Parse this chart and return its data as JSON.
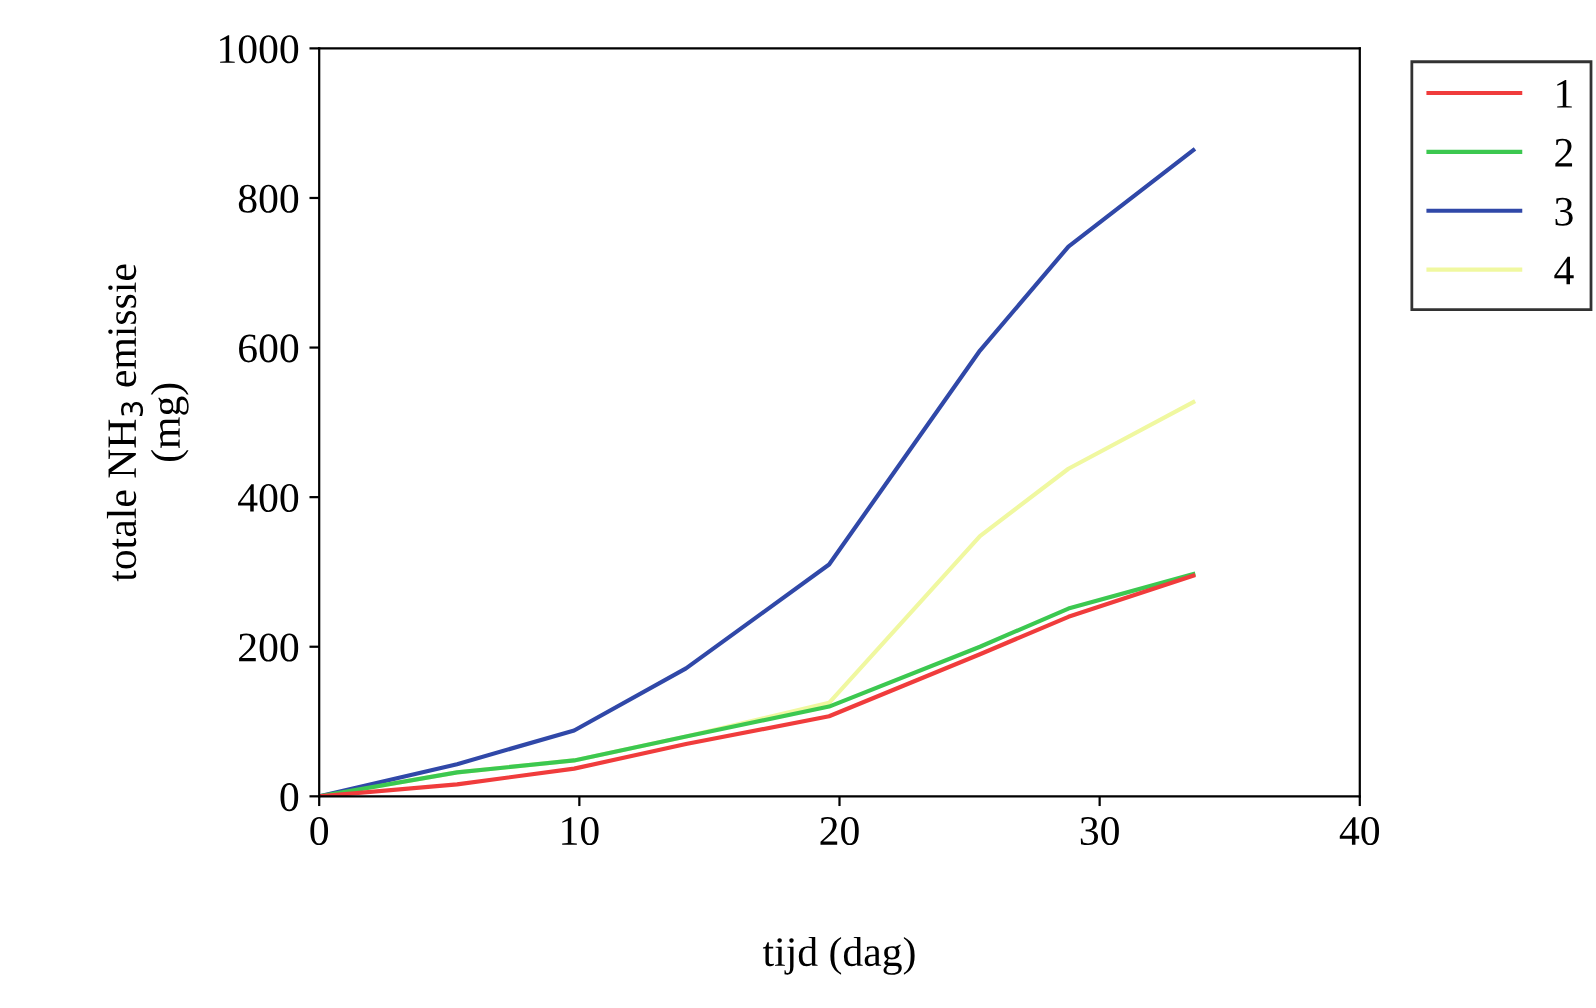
{
  "chart_data": {
    "type": "line",
    "xlabel": "tijd (dag)",
    "ylabel": "totale NH$_{3}$ emissie\n(mg)",
    "x": [
      0,
      5.3,
      9.8,
      14.1,
      19.6,
      25.4,
      28.8,
      33.6
    ],
    "series": [
      {
        "name": "1",
        "color": "#f03c3c",
        "values": [
          0,
          16,
          37,
          70,
          107,
          190,
          240,
          295
        ]
      },
      {
        "name": "2",
        "color": "#3cc850",
        "values": [
          0,
          32,
          48,
          80,
          120,
          200,
          251,
          297
        ]
      },
      {
        "name": "3",
        "color": "#3048a8",
        "values": [
          0,
          43,
          88,
          171,
          310,
          596,
          735,
          864
        ]
      },
      {
        "name": "4",
        "color": "#f0f8a0",
        "values": [
          0,
          32,
          48,
          80,
          125,
          348,
          438,
          527
        ]
      }
    ],
    "xlim": [
      0,
      40
    ],
    "ylim": [
      0,
      1000
    ],
    "xticks": [
      0,
      10,
      20,
      30,
      40
    ],
    "yticks": [
      0,
      200,
      400,
      600,
      800,
      1000
    ],
    "grid": false,
    "legend": "top right",
    "marker": "none",
    "line_style": "solid"
  }
}
